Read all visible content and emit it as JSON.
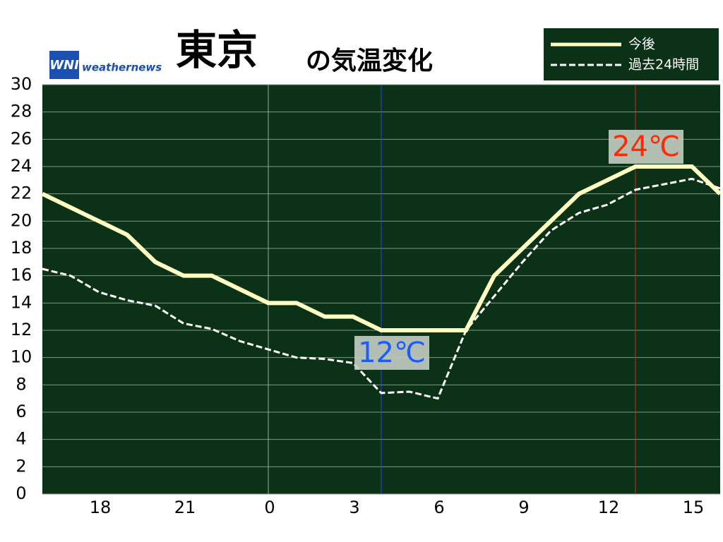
{
  "chart_data": {
    "type": "line",
    "title": "東京",
    "subtitle": "の気温変化",
    "brand": "weathernews",
    "logo": "WNI",
    "x": [
      16,
      17,
      18,
      19,
      20,
      21,
      22,
      23,
      24,
      25,
      26,
      27,
      28,
      29,
      30,
      31,
      32,
      33,
      34,
      35,
      36,
      37,
      38,
      39,
      40
    ],
    "series": [
      {
        "name": "今後",
        "color": "#ffffc4",
        "style": "solid",
        "values": [
          22,
          21,
          20,
          19,
          17,
          16,
          16,
          15,
          14,
          14,
          13,
          13,
          12,
          12,
          12,
          12,
          16,
          18,
          20,
          22,
          23,
          24,
          24,
          24,
          22
        ]
      },
      {
        "name": "過去24時間",
        "color": "#ffffff",
        "style": "dashed",
        "values": [
          16.5,
          16,
          14.8,
          14.2,
          13.8,
          12.5,
          12.1,
          11.2,
          10.6,
          10,
          9.9,
          9.6,
          7.4,
          7.5,
          7.0,
          12,
          14.5,
          17,
          19.3,
          20.6,
          21.2,
          22.3,
          22.7,
          23.1,
          22.4
        ]
      }
    ],
    "xlim": [
      16,
      40
    ],
    "xticks": [
      18,
      21,
      {
        "value": 24,
        "label": "0"
      },
      {
        "value": 27,
        "label": "3"
      },
      {
        "value": 30,
        "label": "6"
      },
      {
        "value": 33,
        "label": "9"
      },
      {
        "value": 36,
        "label": "12"
      },
      {
        "value": 39,
        "label": "15"
      }
    ],
    "ylim": [
      0,
      30
    ],
    "yticks": [
      0,
      2,
      4,
      6,
      8,
      10,
      12,
      14,
      16,
      18,
      20,
      22,
      24,
      26,
      28,
      30
    ],
    "grid": true,
    "markers": [
      {
        "x": 28,
        "color": "#2a3fff"
      },
      {
        "x": 37,
        "color": "#c0301c"
      }
    ],
    "annotations": [
      {
        "text": "12℃",
        "x": 28,
        "y": 12,
        "color": "#1a5cff",
        "position": "below"
      },
      {
        "text": "24℃",
        "x": 37,
        "y": 24,
        "color": "#ff2a00",
        "position": "above"
      }
    ],
    "legend": "top-right"
  }
}
